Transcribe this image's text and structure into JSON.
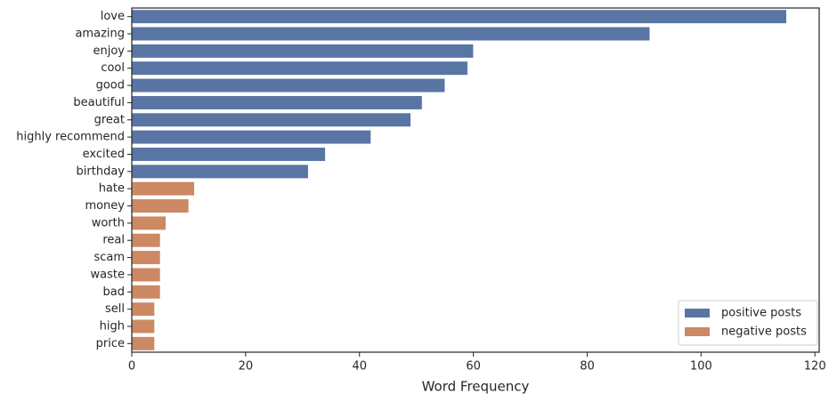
{
  "chart_data": {
    "type": "barh",
    "xlabel": "Word Frequency",
    "categories": [
      "love",
      "amazing",
      "enjoy",
      "cool",
      "good",
      "beautiful",
      "great",
      "highly recommend",
      "excited",
      "birthday",
      "hate",
      "money",
      "worth",
      "real",
      "scam",
      "waste",
      "bad",
      "sell",
      "high",
      "price"
    ],
    "series": [
      {
        "name": "positive posts",
        "color": "#5975a4",
        "values": [
          115,
          91,
          60,
          59,
          55,
          51,
          49,
          42,
          34,
          31,
          null,
          null,
          null,
          null,
          null,
          null,
          null,
          null,
          null,
          null
        ]
      },
      {
        "name": "negative posts",
        "color": "#cc8963",
        "values": [
          null,
          null,
          null,
          null,
          null,
          null,
          null,
          null,
          null,
          null,
          11,
          10,
          6,
          5,
          5,
          5,
          5,
          4,
          4,
          4
        ]
      }
    ],
    "xlim": [
      0,
      120.75
    ],
    "xticks": [
      0,
      20,
      40,
      60,
      80,
      100,
      120
    ],
    "legend": "lower right"
  }
}
